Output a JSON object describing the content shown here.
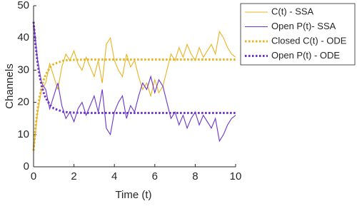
{
  "chart_data": {
    "type": "line",
    "x_label": "Time (t)",
    "y_label": "Channels",
    "xlim": [
      0,
      10
    ],
    "ylim": [
      0,
      50
    ],
    "xticks": [
      0,
      2,
      4,
      6,
      8,
      10
    ],
    "yticks": [
      0,
      10,
      20,
      30,
      40,
      50
    ],
    "legend": "top-right",
    "series": [
      {
        "name": "C(t) - SSA",
        "color": "#e8b321",
        "line_style": "solid",
        "x": [
          0,
          0.2,
          0.4,
          0.6,
          0.8,
          1,
          1.2,
          1.4,
          1.6,
          1.8,
          2,
          2.2,
          2.4,
          2.6,
          2.8,
          3,
          3.2,
          3.4,
          3.6,
          3.8,
          4,
          4.2,
          4.4,
          4.6,
          4.8,
          5,
          5.2,
          5.4,
          5.6,
          5.8,
          6,
          6.2,
          6.4,
          6.6,
          6.8,
          7,
          7.2,
          7.4,
          7.6,
          7.8,
          8,
          8.2,
          8.4,
          8.6,
          8.8,
          9,
          9.2,
          9.4,
          9.6,
          9.8,
          10
        ],
        "values": [
          5,
          17,
          24,
          26,
          32,
          28,
          24,
          31,
          35,
          33,
          36,
          32,
          30,
          34,
          31,
          28,
          33,
          26,
          38,
          40,
          33,
          30,
          28,
          35,
          31,
          33,
          28,
          24,
          26,
          22,
          27,
          23,
          25,
          30,
          35,
          33,
          37,
          34,
          38,
          35,
          33,
          37,
          34,
          36,
          38,
          35,
          42,
          40,
          37,
          35,
          34
        ]
      },
      {
        "name": "Open P(t)- SSA",
        "color": "#6b33cc",
        "line_style": "solid",
        "x": [
          0,
          0.2,
          0.4,
          0.6,
          0.8,
          1,
          1.2,
          1.4,
          1.6,
          1.8,
          2,
          2.2,
          2.4,
          2.6,
          2.8,
          3,
          3.2,
          3.4,
          3.6,
          3.8,
          4,
          4.2,
          4.4,
          4.6,
          4.8,
          5,
          5.2,
          5.4,
          5.6,
          5.8,
          6,
          6.2,
          6.4,
          6.6,
          6.8,
          7,
          7.2,
          7.4,
          7.6,
          7.8,
          8,
          8.2,
          8.4,
          8.6,
          8.8,
          9,
          9.2,
          9.4,
          9.6,
          9.8,
          10
        ],
        "values": [
          45,
          33,
          26,
          24,
          18,
          22,
          26,
          19,
          15,
          17,
          14,
          18,
          20,
          16,
          19,
          22,
          17,
          24,
          12,
          10,
          17,
          20,
          22,
          15,
          19,
          17,
          22,
          26,
          24,
          28,
          23,
          27,
          25,
          20,
          15,
          17,
          13,
          16,
          12,
          15,
          17,
          13,
          16,
          14,
          12,
          15,
          8,
          10,
          13,
          15,
          16
        ]
      },
      {
        "name": "Closed C(t) - ODE",
        "color": "#e8b321",
        "line_style": "dotted",
        "x": [
          0,
          0.1,
          0.2,
          0.3,
          0.4,
          0.5,
          0.6,
          0.8,
          1,
          1.5,
          2,
          3,
          4,
          5,
          6,
          7,
          8,
          9,
          10
        ],
        "values": [
          5,
          12.3,
          17.8,
          21.8,
          24.8,
          27,
          28.6,
          30.7,
          31.9,
          33,
          33.2,
          33.3,
          33.3,
          33.3,
          33.3,
          33.3,
          33.3,
          33.3,
          33.3
        ]
      },
      {
        "name": "Open P(t) - ODE",
        "color": "#6b33cc",
        "line_style": "dotted",
        "x": [
          0,
          0.1,
          0.2,
          0.3,
          0.4,
          0.5,
          0.6,
          0.8,
          1,
          1.5,
          2,
          3,
          4,
          5,
          6,
          7,
          8,
          9,
          10
        ],
        "values": [
          45,
          37.7,
          32.2,
          28.2,
          25.2,
          23,
          21.4,
          19.3,
          18.1,
          17,
          16.8,
          16.7,
          16.7,
          16.7,
          16.7,
          16.7,
          16.7,
          16.7,
          16.7
        ]
      }
    ]
  }
}
